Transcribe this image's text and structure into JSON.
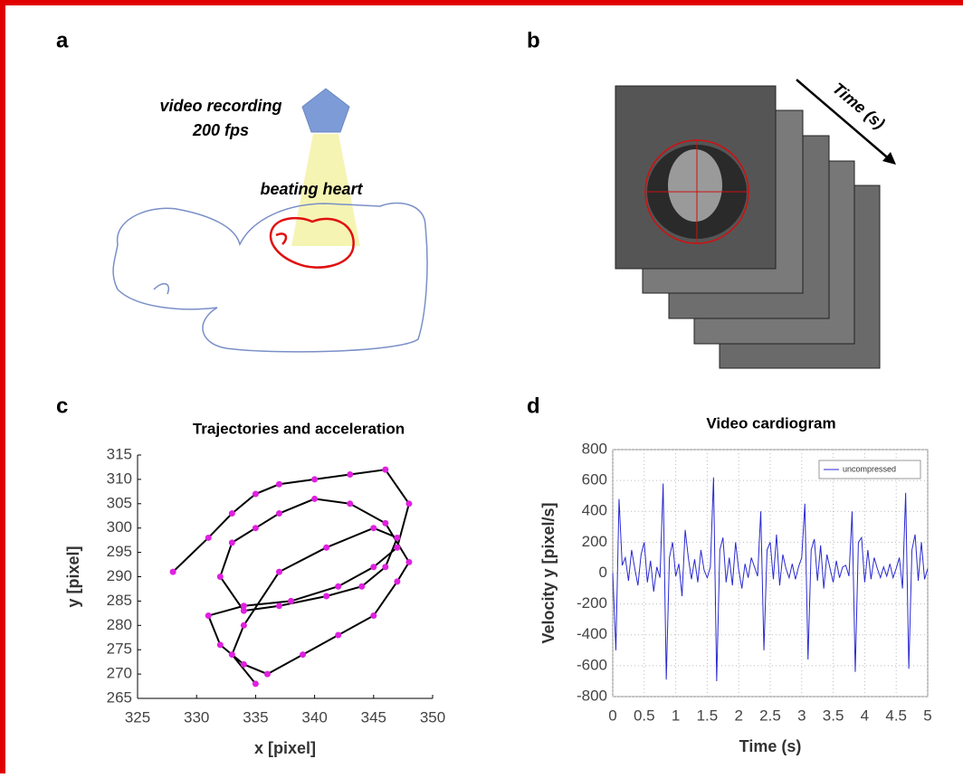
{
  "panels": [
    {
      "label": "a",
      "camera": "video recording",
      "rate": "200 fps",
      "target": "beating heart"
    },
    {
      "label": "b",
      "arrow": "Time (s)"
    },
    {
      "label": "c"
    },
    {
      "label": "d"
    }
  ],
  "chart_data": [
    {
      "type": "line",
      "title": "Trajectories and acceleration",
      "x_label": "x [pixel]",
      "y_label": "y [pixel]",
      "color": "#000000",
      "marker_color": "#e020e0",
      "x": [
        328,
        331,
        333,
        335,
        337,
        340,
        343,
        346,
        348,
        347,
        345,
        342,
        338,
        334,
        331,
        332,
        334,
        336,
        339,
        342,
        345,
        347,
        348,
        346,
        343,
        340,
        337,
        335,
        333,
        332,
        334,
        337,
        341,
        344,
        346,
        347,
        345,
        341,
        337,
        334,
        333,
        335
      ],
      "values": [
        291,
        298,
        303,
        307,
        309,
        310,
        311,
        312,
        305,
        296,
        292,
        288,
        285,
        284,
        282,
        276,
        272,
        270,
        274,
        278,
        282,
        289,
        293,
        301,
        305,
        306,
        303,
        300,
        297,
        290,
        283,
        284,
        286,
        288,
        292,
        298,
        300,
        296,
        291,
        280,
        274,
        268
      ],
      "xlim": [
        325,
        350
      ],
      "ylim": [
        265,
        315
      ],
      "xticks": [
        325,
        330,
        335,
        340,
        345,
        350
      ],
      "yticks": [
        265,
        270,
        275,
        280,
        285,
        290,
        295,
        300,
        305,
        310,
        315
      ]
    },
    {
      "type": "line",
      "title": "Video cardiogram",
      "x_label": "Time (s)",
      "y_label": "Velocity y [pixel/s]",
      "grid": true,
      "legend": "upper right",
      "x": [
        0,
        0.05,
        0.1,
        0.15,
        0.2,
        0.25,
        0.3,
        0.35,
        0.4,
        0.45,
        0.5,
        0.55,
        0.6,
        0.65,
        0.7,
        0.75,
        0.8,
        0.85,
        0.9,
        0.95,
        1,
        1.05,
        1.1,
        1.15,
        1.2,
        1.25,
        1.3,
        1.35,
        1.4,
        1.45,
        1.5,
        1.55,
        1.6,
        1.65,
        1.7,
        1.75,
        1.8,
        1.85,
        1.9,
        1.95,
        2,
        2.05,
        2.1,
        2.15,
        2.2,
        2.25,
        2.3,
        2.35,
        2.4,
        2.45,
        2.5,
        2.55,
        2.6,
        2.65,
        2.7,
        2.75,
        2.8,
        2.85,
        2.9,
        2.95,
        3,
        3.05,
        3.1,
        3.15,
        3.2,
        3.25,
        3.3,
        3.35,
        3.4,
        3.45,
        3.5,
        3.55,
        3.6,
        3.65,
        3.7,
        3.75,
        3.8,
        3.85,
        3.9,
        3.95,
        4,
        4.05,
        4.1,
        4.15,
        4.2,
        4.25,
        4.3,
        4.35,
        4.4,
        4.45,
        4.5,
        4.55,
        4.6,
        4.65,
        4.7,
        4.75,
        4.8,
        4.85,
        4.9,
        4.95,
        5
      ],
      "series": [
        {
          "name": "uncompressed",
          "color": "#2a2ad0",
          "values": [
            0,
            -500,
            480,
            50,
            100,
            -50,
            150,
            30,
            -80,
            120,
            200,
            -60,
            80,
            -120,
            40,
            -30,
            580,
            -690,
            100,
            200,
            -20,
            60,
            -150,
            280,
            100,
            -40,
            90,
            -60,
            150,
            20,
            -30,
            40,
            620,
            -700,
            150,
            230,
            -60,
            100,
            -80,
            200,
            20,
            -100,
            60,
            -30,
            100,
            40,
            -20,
            400,
            -500,
            150,
            200,
            -40,
            250,
            -80,
            120,
            30,
            -30,
            60,
            -40,
            40,
            100,
            450,
            -560,
            150,
            220,
            -50,
            180,
            -100,
            120,
            30,
            -60,
            80,
            -30,
            40,
            50,
            -20,
            400,
            -640,
            200,
            230,
            -60,
            150,
            -40,
            100,
            30,
            -30,
            40,
            -20,
            60,
            -30,
            30,
            100,
            -100,
            520,
            -620,
            150,
            250,
            -50,
            200,
            -40,
            30
          ]
        }
      ],
      "xlim": [
        0,
        5
      ],
      "ylim": [
        -800,
        800
      ],
      "xticks": [
        0,
        0.5,
        1,
        1.5,
        2,
        2.5,
        3,
        3.5,
        4,
        4.5,
        5
      ],
      "yticks": [
        -800,
        -600,
        -400,
        -200,
        0,
        200,
        400,
        600,
        800
      ]
    }
  ]
}
